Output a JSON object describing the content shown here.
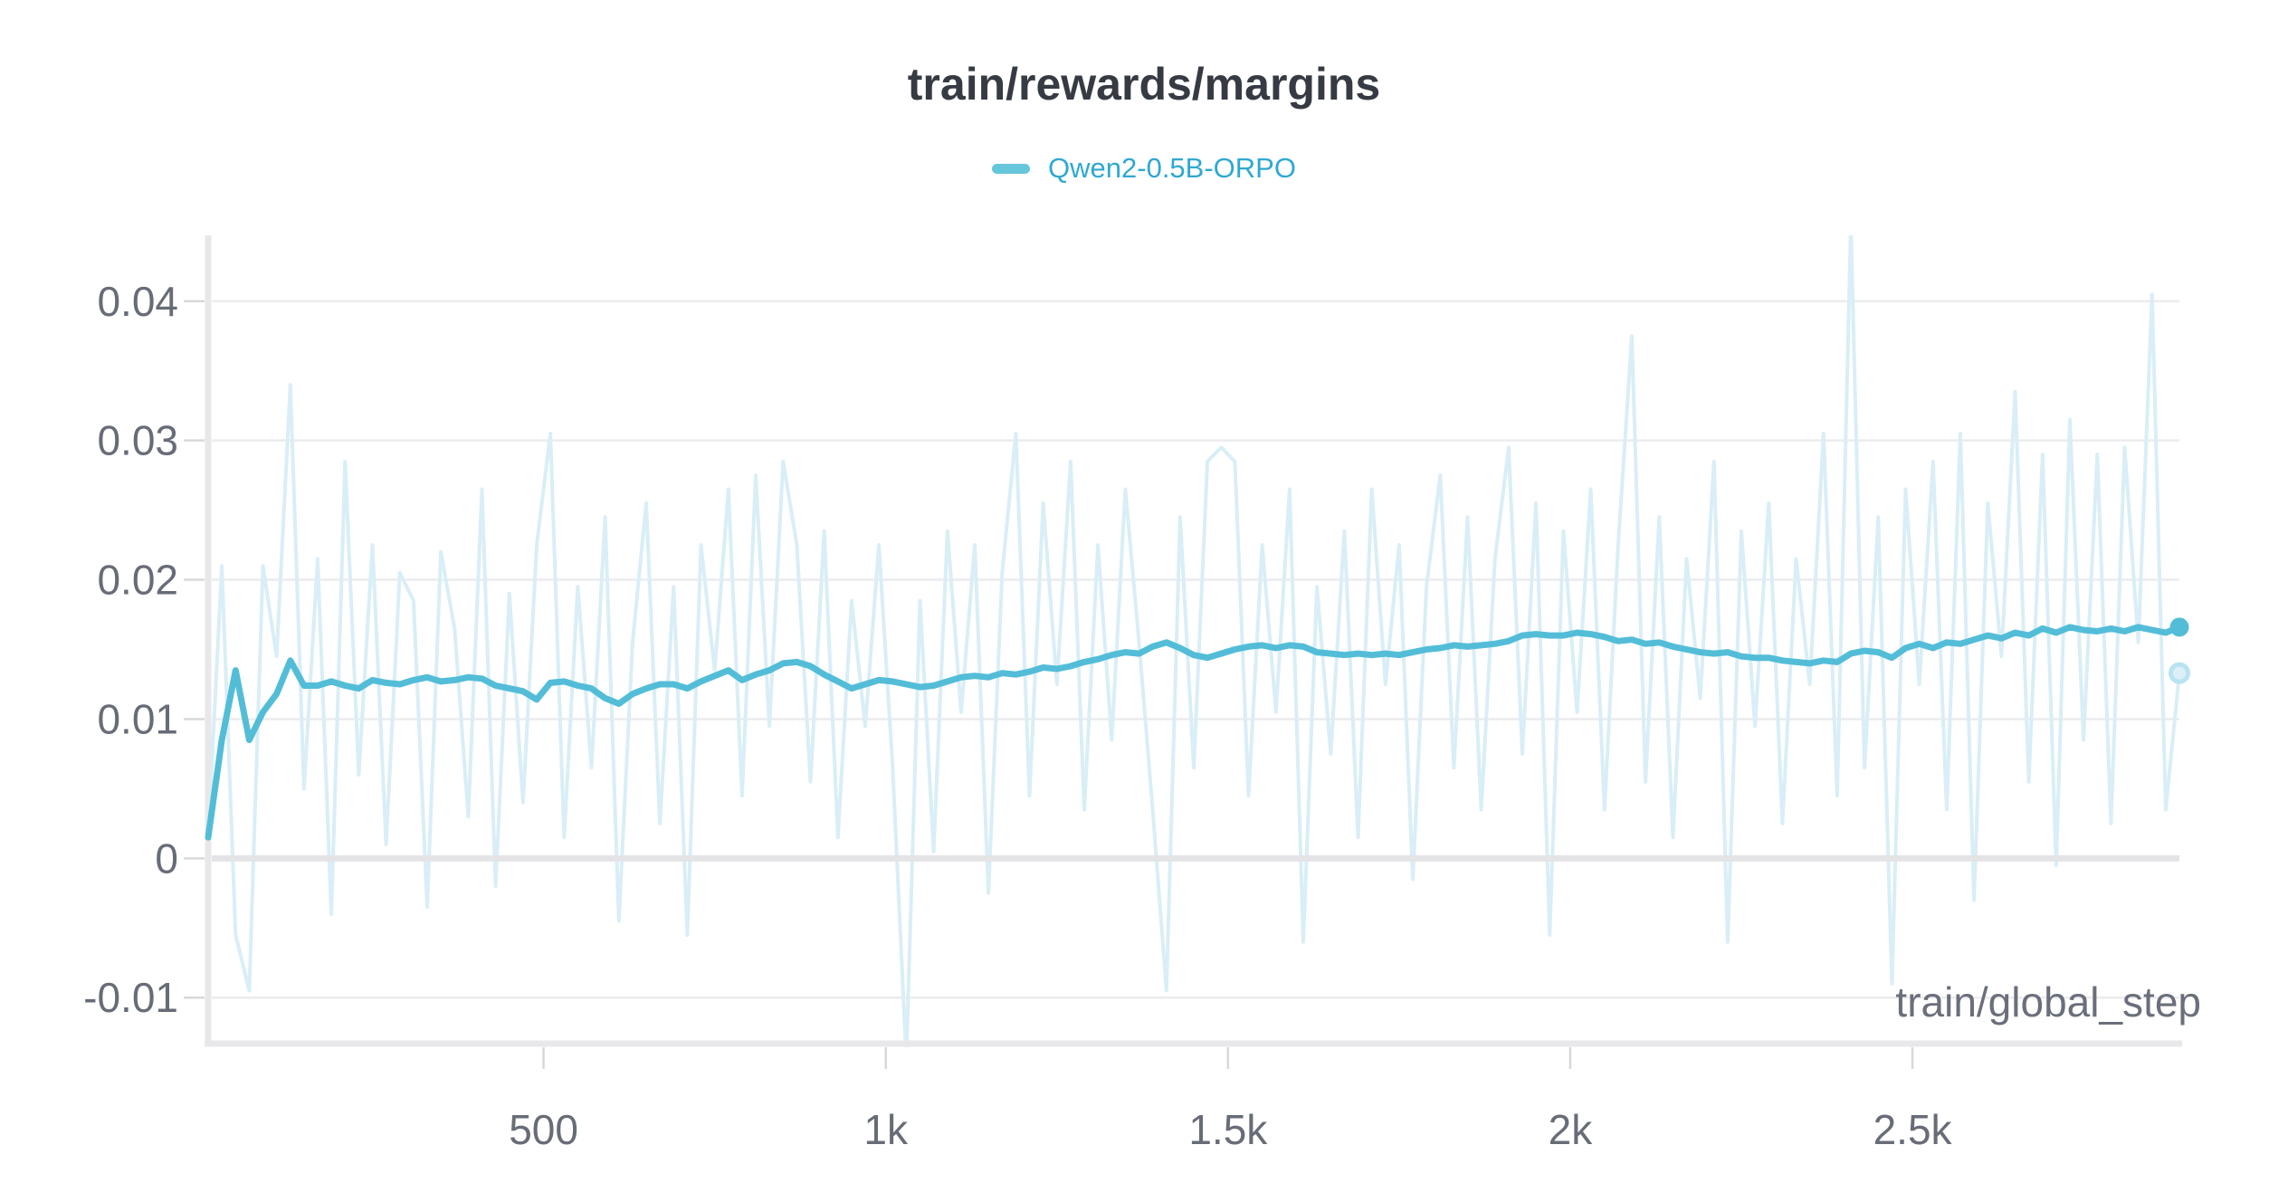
{
  "panel": {
    "title": "train/rewards/margins",
    "legend": [
      {
        "label": "Qwen2-0.5B-ORPO",
        "text_color": "#2fa8d2",
        "swatch_color": "#66c6db"
      }
    ]
  },
  "chart_data": {
    "type": "line",
    "title": "train/rewards/margins",
    "xlabel": "train/global_step",
    "ylabel": "",
    "xlim": [
      10,
      2890
    ],
    "ylim": [
      -0.0133,
      0.0446
    ],
    "grid": true,
    "legend_position": "top-center",
    "x_ticks": [
      {
        "v": 500,
        "label": "500"
      },
      {
        "v": 1000,
        "label": "1k"
      },
      {
        "v": 1500,
        "label": "1.5k"
      },
      {
        "v": 2000,
        "label": "2k"
      },
      {
        "v": 2500,
        "label": "2.5k"
      }
    ],
    "y_ticks": [
      {
        "v": 0.04,
        "label": "0.04"
      },
      {
        "v": 0.03,
        "label": "0.03"
      },
      {
        "v": 0.02,
        "label": "0.02"
      },
      {
        "v": 0.01,
        "label": "0.01"
      },
      {
        "v": 0,
        "label": "0"
      },
      {
        "v": -0.01,
        "label": "-0.01"
      }
    ],
    "colors": {
      "grid": "#ececee",
      "zero_line": "#e4e4e7",
      "spine": "#e8e8ea",
      "tick_mark": "#d8d8db",
      "tick_label": "#676c77",
      "axis_title": "#6a6f7b",
      "title": "#363b43"
    },
    "series": [
      {
        "name": "Qwen2-0.5B-ORPO (raw)",
        "role": "raw",
        "color": "#d9eef6",
        "stroke_width": 4,
        "x_start": 10,
        "x_step": 20,
        "end_marker": "ring",
        "values": [
          0.0015,
          0.021,
          -0.0055,
          -0.0095,
          0.021,
          0.0145,
          0.034,
          0.005,
          0.0215,
          -0.004,
          0.0285,
          0.006,
          0.0225,
          0.001,
          0.0205,
          0.0185,
          -0.0035,
          0.022,
          0.0165,
          0.003,
          0.0265,
          -0.002,
          0.019,
          0.004,
          0.0225,
          0.0305,
          0.0015,
          0.0195,
          0.0065,
          0.0245,
          -0.0045,
          0.0155,
          0.0255,
          0.0025,
          0.0195,
          -0.0055,
          0.0225,
          0.0135,
          0.0265,
          0.0045,
          0.0275,
          0.0095,
          0.0285,
          0.0225,
          0.0055,
          0.0235,
          0.0015,
          0.0185,
          0.0095,
          0.0225,
          0.0065,
          -0.0145,
          0.0185,
          0.0005,
          0.0235,
          0.0105,
          0.0225,
          -0.0025,
          0.0205,
          0.0305,
          0.0045,
          0.0255,
          0.0125,
          0.0285,
          0.0035,
          0.0225,
          0.0085,
          0.0265,
          0.0155,
          0.0035,
          -0.0095,
          0.0245,
          0.0065,
          0.0285,
          0.0295,
          0.0285,
          0.0045,
          0.0225,
          0.0105,
          0.0265,
          -0.006,
          0.0195,
          0.0075,
          0.0235,
          0.0015,
          0.0265,
          0.0125,
          0.0225,
          -0.0015,
          0.0195,
          0.0275,
          0.0065,
          0.0245,
          0.0035,
          0.0215,
          0.0295,
          0.0075,
          0.0255,
          -0.0055,
          0.0235,
          0.0105,
          0.0265,
          0.0035,
          0.0225,
          0.0375,
          0.0055,
          0.0245,
          0.0015,
          0.0215,
          0.0115,
          0.0285,
          -0.006,
          0.0235,
          0.0095,
          0.0255,
          0.0025,
          0.0215,
          0.0125,
          0.0305,
          0.0045,
          0.0455,
          0.0065,
          0.0245,
          -0.009,
          0.0265,
          0.0125,
          0.0285,
          0.0035,
          0.0305,
          -0.003,
          0.0255,
          0.0145,
          0.0335,
          0.0055,
          0.029,
          -0.0005,
          0.0315,
          0.0085,
          0.029,
          0.0025,
          0.0295,
          0.0155,
          0.0405,
          0.0035,
          0.0133
        ]
      },
      {
        "name": "Qwen2-0.5B-ORPO",
        "role": "smoothed",
        "color": "#53bdd8",
        "stroke_width": 7,
        "x_start": 10,
        "x_step": 20,
        "end_marker": "dot",
        "values": [
          0.0015,
          0.0085,
          0.0135,
          0.0085,
          0.0105,
          0.0118,
          0.0142,
          0.0124,
          0.0124,
          0.0127,
          0.0124,
          0.0122,
          0.0128,
          0.0126,
          0.0125,
          0.0128,
          0.013,
          0.0127,
          0.0128,
          0.013,
          0.0129,
          0.0124,
          0.0122,
          0.012,
          0.0114,
          0.0126,
          0.0127,
          0.0124,
          0.0122,
          0.0115,
          0.0111,
          0.0118,
          0.0122,
          0.0125,
          0.0125,
          0.0122,
          0.0127,
          0.0131,
          0.0135,
          0.0128,
          0.0132,
          0.0135,
          0.014,
          0.0141,
          0.0138,
          0.0132,
          0.0127,
          0.0122,
          0.0125,
          0.0128,
          0.0127,
          0.0125,
          0.0123,
          0.0124,
          0.0127,
          0.013,
          0.0131,
          0.013,
          0.0133,
          0.0132,
          0.0134,
          0.0137,
          0.0136,
          0.0138,
          0.0141,
          0.0143,
          0.0146,
          0.0148,
          0.0147,
          0.0152,
          0.0155,
          0.0151,
          0.0146,
          0.0144,
          0.0147,
          0.015,
          0.0152,
          0.0153,
          0.0151,
          0.0153,
          0.0152,
          0.0148,
          0.0147,
          0.0146,
          0.0147,
          0.0146,
          0.0147,
          0.0146,
          0.0148,
          0.015,
          0.0151,
          0.0153,
          0.0152,
          0.0153,
          0.0154,
          0.0156,
          0.016,
          0.0161,
          0.016,
          0.016,
          0.0162,
          0.0161,
          0.0159,
          0.0156,
          0.0157,
          0.0154,
          0.0155,
          0.0152,
          0.015,
          0.0148,
          0.0147,
          0.0148,
          0.0145,
          0.0144,
          0.0144,
          0.0142,
          0.0141,
          0.014,
          0.0142,
          0.0141,
          0.0147,
          0.0149,
          0.0148,
          0.0144,
          0.0151,
          0.0154,
          0.0151,
          0.0155,
          0.0154,
          0.0157,
          0.016,
          0.0158,
          0.0162,
          0.016,
          0.0165,
          0.0162,
          0.0166,
          0.0164,
          0.0163,
          0.0165,
          0.0163,
          0.0166,
          0.0164,
          0.0162,
          0.0166
        ]
      }
    ]
  }
}
